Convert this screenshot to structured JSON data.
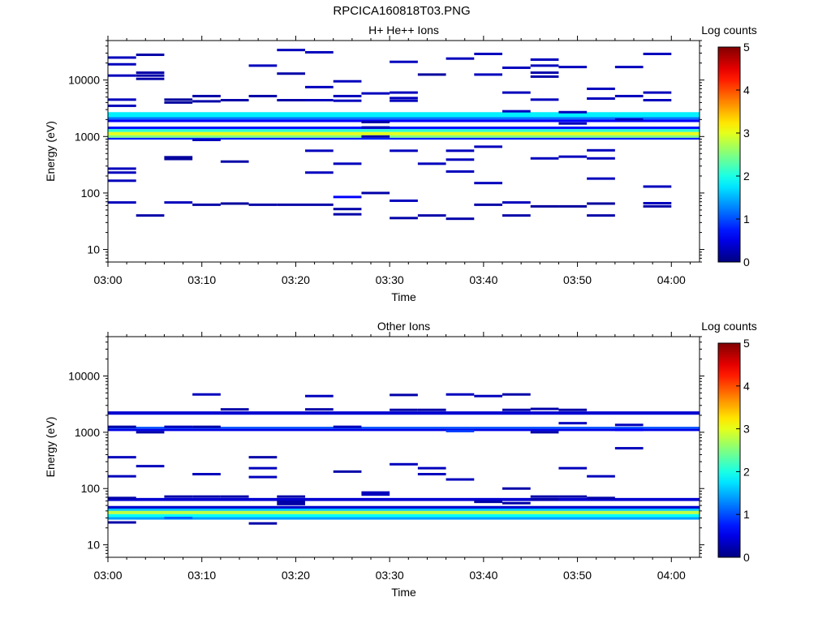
{
  "title": "RPCICA160818T03.PNG",
  "colors": {
    "frame": "#000000"
  },
  "chart_data": [
    {
      "type": "heatmap",
      "title": "H+ He++ Ions",
      "xlabel": "Time",
      "ylabel": "Energy (eV)",
      "yscale": "log",
      "ylim": [
        6,
        50000
      ],
      "xlim": [
        "03:00",
        "04:03"
      ],
      "x_ticks": [
        "03:00",
        "03:10",
        "03:20",
        "03:30",
        "03:40",
        "03:50",
        "04:00"
      ],
      "y_ticks": [
        "10",
        "100",
        "1000",
        "10000"
      ],
      "colorbar": {
        "label": "Log counts",
        "range": [
          0,
          5
        ],
        "ticks": [
          "0",
          "1",
          "2",
          "3",
          "4",
          "5"
        ]
      },
      "time_bins": [
        "03:00",
        "03:03",
        "03:06",
        "03:09",
        "03:12",
        "03:15",
        "03:18",
        "03:21",
        "03:24",
        "03:27",
        "03:30",
        "03:33",
        "03:36",
        "03:39",
        "03:42",
        "03:45",
        "03:48",
        "03:51",
        "03:54",
        "03:57",
        "04:00"
      ],
      "bands": [
        {
          "energy_lo": 2200,
          "energy_hi": 2700,
          "log_counts": 1.8
        },
        {
          "energy_lo": 2000,
          "energy_hi": 2200,
          "log_counts": 1.2
        },
        {
          "energy_lo": 1800,
          "energy_hi": 2000,
          "log_counts": 0.6
        },
        {
          "energy_lo": 1350,
          "energy_hi": 1500,
          "log_counts": 0.7
        },
        {
          "energy_lo": 1200,
          "energy_hi": 1350,
          "log_counts": 2.1
        },
        {
          "energy_lo": 1050,
          "energy_hi": 1200,
          "log_counts": 3.0
        },
        {
          "energy_lo": 950,
          "energy_hi": 1050,
          "log_counts": 2.5
        },
        {
          "energy_lo": 880,
          "energy_hi": 950,
          "log_counts": 0.8
        }
      ],
      "sparse": [
        {
          "t": 0,
          "e": 25000,
          "v": 0.3
        },
        {
          "t": 0,
          "e": 19000,
          "v": 0.3
        },
        {
          "t": 0,
          "e": 12000,
          "v": 0.3
        },
        {
          "t": 0,
          "e": 4500,
          "v": 0.3
        },
        {
          "t": 0,
          "e": 3500,
          "v": 0.3
        },
        {
          "t": 0,
          "e": 270,
          "v": 0.3
        },
        {
          "t": 0,
          "e": 230,
          "v": 0.3
        },
        {
          "t": 0,
          "e": 165,
          "v": 0.3
        },
        {
          "t": 0,
          "e": 68,
          "v": 0.3
        },
        {
          "t": 1,
          "e": 28000,
          "v": 0.2
        },
        {
          "t": 1,
          "e": 13500,
          "v": 0.2
        },
        {
          "t": 1,
          "e": 12000,
          "v": 0.2
        },
        {
          "t": 1,
          "e": 10500,
          "v": 0.2
        },
        {
          "t": 1,
          "e": 40,
          "v": 0.2
        },
        {
          "t": 2,
          "e": 4500,
          "v": 0.15
        },
        {
          "t": 2,
          "e": 4000,
          "v": 0.15
        },
        {
          "t": 2,
          "e": 430,
          "v": 0.15
        },
        {
          "t": 2,
          "e": 400,
          "v": 0.15
        },
        {
          "t": 2,
          "e": 68,
          "v": 0.3
        },
        {
          "t": 3,
          "e": 5200,
          "v": 0.2
        },
        {
          "t": 3,
          "e": 4200,
          "v": 0.2
        },
        {
          "t": 3,
          "e": 870,
          "v": 0.3
        },
        {
          "t": 3,
          "e": 62,
          "v": 0.2
        },
        {
          "t": 4,
          "e": 4400,
          "v": 0.2
        },
        {
          "t": 4,
          "e": 360,
          "v": 0.2
        },
        {
          "t": 4,
          "e": 65,
          "v": 0.15
        },
        {
          "t": 5,
          "e": 18000,
          "v": 0.3
        },
        {
          "t": 5,
          "e": 5200,
          "v": 0.2
        },
        {
          "t": 5,
          "e": 62,
          "v": 0.2
        },
        {
          "t": 6,
          "e": 34000,
          "v": 0.3
        },
        {
          "t": 6,
          "e": 13000,
          "v": 0.2
        },
        {
          "t": 6,
          "e": 4400,
          "v": 0.2
        },
        {
          "t": 6,
          "e": 62,
          "v": 0.2
        },
        {
          "t": 7,
          "e": 31000,
          "v": 0.3
        },
        {
          "t": 7,
          "e": 7500,
          "v": 0.3
        },
        {
          "t": 7,
          "e": 4400,
          "v": 0.3
        },
        {
          "t": 7,
          "e": 560,
          "v": 0.3
        },
        {
          "t": 7,
          "e": 230,
          "v": 0.3
        },
        {
          "t": 7,
          "e": 62,
          "v": 0.2
        },
        {
          "t": 8,
          "e": 9500,
          "v": 0.3
        },
        {
          "t": 8,
          "e": 5200,
          "v": 0.3
        },
        {
          "t": 8,
          "e": 4300,
          "v": 0.3
        },
        {
          "t": 8,
          "e": 330,
          "v": 0.3
        },
        {
          "t": 8,
          "e": 85,
          "v": 0.6
        },
        {
          "t": 8,
          "e": 52,
          "v": 0.2
        },
        {
          "t": 8,
          "e": 42,
          "v": 0.2
        },
        {
          "t": 9,
          "e": 5800,
          "v": 0.3
        },
        {
          "t": 9,
          "e": 1800,
          "v": 0.2
        },
        {
          "t": 9,
          "e": 1450,
          "v": 0.3
        },
        {
          "t": 9,
          "e": 1000,
          "v": 0.2
        },
        {
          "t": 9,
          "e": 100,
          "v": 0.2
        },
        {
          "t": 10,
          "e": 21000,
          "v": 0.3
        },
        {
          "t": 10,
          "e": 6000,
          "v": 0.3
        },
        {
          "t": 10,
          "e": 4800,
          "v": 0.3
        },
        {
          "t": 10,
          "e": 4300,
          "v": 0.3
        },
        {
          "t": 10,
          "e": 560,
          "v": 0.3
        },
        {
          "t": 10,
          "e": 73,
          "v": 0.3
        },
        {
          "t": 10,
          "e": 36,
          "v": 0.2
        },
        {
          "t": 11,
          "e": 12500,
          "v": 0.15
        },
        {
          "t": 11,
          "e": 330,
          "v": 0.3
        },
        {
          "t": 11,
          "e": 40,
          "v": 0.2
        },
        {
          "t": 12,
          "e": 24000,
          "v": 0.3
        },
        {
          "t": 12,
          "e": 560,
          "v": 0.3
        },
        {
          "t": 12,
          "e": 390,
          "v": 0.3
        },
        {
          "t": 12,
          "e": 240,
          "v": 0.3
        },
        {
          "t": 12,
          "e": 35,
          "v": 0.2
        },
        {
          "t": 13,
          "e": 29000,
          "v": 0.3
        },
        {
          "t": 13,
          "e": 12500,
          "v": 0.3
        },
        {
          "t": 13,
          "e": 660,
          "v": 0.3
        },
        {
          "t": 13,
          "e": 150,
          "v": 0.3
        },
        {
          "t": 13,
          "e": 62,
          "v": 0.2
        },
        {
          "t": 14,
          "e": 16500,
          "v": 0.3
        },
        {
          "t": 14,
          "e": 6000,
          "v": 0.3
        },
        {
          "t": 14,
          "e": 2800,
          "v": 0.3
        },
        {
          "t": 14,
          "e": 68,
          "v": 0.3
        },
        {
          "t": 14,
          "e": 40,
          "v": 0.2
        },
        {
          "t": 15,
          "e": 23000,
          "v": 0.3
        },
        {
          "t": 15,
          "e": 18000,
          "v": 0.3
        },
        {
          "t": 15,
          "e": 13500,
          "v": 0.2
        },
        {
          "t": 15,
          "e": 11500,
          "v": 0.2
        },
        {
          "t": 15,
          "e": 4500,
          "v": 0.3
        },
        {
          "t": 15,
          "e": 410,
          "v": 0.3
        },
        {
          "t": 15,
          "e": 58,
          "v": 0.15
        },
        {
          "t": 16,
          "e": 17000,
          "v": 0.3
        },
        {
          "t": 16,
          "e": 2700,
          "v": 0.3
        },
        {
          "t": 16,
          "e": 1700,
          "v": 0.3
        },
        {
          "t": 16,
          "e": 440,
          "v": 0.3
        },
        {
          "t": 16,
          "e": 58,
          "v": 0.15
        },
        {
          "t": 17,
          "e": 7000,
          "v": 0.3
        },
        {
          "t": 17,
          "e": 4700,
          "v": 0.3
        },
        {
          "t": 17,
          "e": 570,
          "v": 0.3
        },
        {
          "t": 17,
          "e": 410,
          "v": 0.3
        },
        {
          "t": 17,
          "e": 180,
          "v": 0.3
        },
        {
          "t": 17,
          "e": 65,
          "v": 0.15
        },
        {
          "t": 17,
          "e": 40,
          "v": 0.2
        },
        {
          "t": 18,
          "e": 17000,
          "v": 0.3
        },
        {
          "t": 18,
          "e": 5200,
          "v": 0.3
        },
        {
          "t": 18,
          "e": 2000,
          "v": 0.3
        },
        {
          "t": 19,
          "e": 29000,
          "v": 0.3
        },
        {
          "t": 19,
          "e": 6000,
          "v": 0.3
        },
        {
          "t": 19,
          "e": 4400,
          "v": 0.3
        },
        {
          "t": 19,
          "e": 130,
          "v": 0.3
        },
        {
          "t": 19,
          "e": 66,
          "v": 0.3
        },
        {
          "t": 19,
          "e": 58,
          "v": 0.2
        }
      ]
    },
    {
      "type": "heatmap",
      "title": "Other Ions",
      "xlabel": "Time",
      "ylabel": "Energy (eV)",
      "yscale": "log",
      "ylim": [
        6,
        50000
      ],
      "xlim": [
        "03:00",
        "04:03"
      ],
      "x_ticks": [
        "03:00",
        "03:10",
        "03:20",
        "03:30",
        "03:40",
        "03:50",
        "04:00"
      ],
      "y_ticks": [
        "10",
        "100",
        "1000",
        "10000"
      ],
      "colorbar": {
        "label": "Log counts",
        "range": [
          0,
          5
        ],
        "ticks": [
          "0",
          "1",
          "2",
          "3",
          "4",
          "5"
        ]
      },
      "time_bins": [
        "03:00",
        "03:03",
        "03:06",
        "03:09",
        "03:12",
        "03:15",
        "03:18",
        "03:21",
        "03:24",
        "03:27",
        "03:30",
        "03:33",
        "03:36",
        "03:39",
        "03:42",
        "03:45",
        "03:48",
        "03:51",
        "03:54",
        "03:57",
        "04:00"
      ],
      "bands": [
        {
          "energy_lo": 2050,
          "energy_hi": 2350,
          "log_counts": 0.4
        },
        {
          "energy_lo": 1150,
          "energy_hi": 1250,
          "log_counts": 1.0
        },
        {
          "energy_lo": 1050,
          "energy_hi": 1150,
          "log_counts": 0.5
        },
        {
          "energy_lo": 60,
          "energy_hi": 68,
          "log_counts": 0.4
        },
        {
          "energy_lo": 44,
          "energy_hi": 49,
          "log_counts": 0.4
        },
        {
          "energy_lo": 40,
          "energy_hi": 44,
          "log_counts": 1.6
        },
        {
          "energy_lo": 35,
          "energy_hi": 40,
          "log_counts": 2.8
        },
        {
          "energy_lo": 31,
          "energy_hi": 35,
          "log_counts": 1.9
        },
        {
          "energy_lo": 28,
          "energy_hi": 31,
          "log_counts": 1.4
        }
      ],
      "sparse": [
        {
          "t": 0,
          "e": 1250,
          "v": 0.2
        },
        {
          "t": 0,
          "e": 360,
          "v": 0.3
        },
        {
          "t": 0,
          "e": 165,
          "v": 0.3
        },
        {
          "t": 0,
          "e": 68,
          "v": 0.2
        },
        {
          "t": 0,
          "e": 25,
          "v": 0.2
        },
        {
          "t": 1,
          "e": 1000,
          "v": 0.2
        },
        {
          "t": 1,
          "e": 250,
          "v": 0.3
        },
        {
          "t": 2,
          "e": 1250,
          "v": 0.3
        },
        {
          "t": 2,
          "e": 72,
          "v": 0.2
        },
        {
          "t": 2,
          "e": 30,
          "v": 1.1
        },
        {
          "t": 3,
          "e": 4700,
          "v": 0.3
        },
        {
          "t": 3,
          "e": 1250,
          "v": 0.2
        },
        {
          "t": 3,
          "e": 180,
          "v": 0.3
        },
        {
          "t": 3,
          "e": 72,
          "v": 0.2
        },
        {
          "t": 4,
          "e": 2550,
          "v": 0.2
        },
        {
          "t": 4,
          "e": 72,
          "v": 0.2
        },
        {
          "t": 5,
          "e": 360,
          "v": 0.2
        },
        {
          "t": 5,
          "e": 230,
          "v": 0.3
        },
        {
          "t": 5,
          "e": 160,
          "v": 0.3
        },
        {
          "t": 5,
          "e": 24,
          "v": 0.2
        },
        {
          "t": 6,
          "e": 72,
          "v": 0.2
        },
        {
          "t": 6,
          "e": 58,
          "v": 0.2
        },
        {
          "t": 6,
          "e": 53,
          "v": 0.2
        },
        {
          "t": 7,
          "e": 4400,
          "v": 0.3
        },
        {
          "t": 7,
          "e": 2550,
          "v": 0.2
        },
        {
          "t": 8,
          "e": 1250,
          "v": 0.3
        },
        {
          "t": 8,
          "e": 200,
          "v": 0.2
        },
        {
          "t": 9,
          "e": 85,
          "v": 0.3
        },
        {
          "t": 9,
          "e": 78,
          "v": 0.3
        },
        {
          "t": 10,
          "e": 4600,
          "v": 0.2
        },
        {
          "t": 10,
          "e": 2500,
          "v": 0.2
        },
        {
          "t": 10,
          "e": 270,
          "v": 0.3
        },
        {
          "t": 11,
          "e": 2500,
          "v": 0.2
        },
        {
          "t": 11,
          "e": 230,
          "v": 0.3
        },
        {
          "t": 11,
          "e": 180,
          "v": 0.3
        },
        {
          "t": 12,
          "e": 1050,
          "v": 0.9
        },
        {
          "t": 12,
          "e": 4700,
          "v": 0.3
        },
        {
          "t": 12,
          "e": 145,
          "v": 0.3
        },
        {
          "t": 13,
          "e": 4400,
          "v": 0.3
        },
        {
          "t": 13,
          "e": 58,
          "v": 0.2
        },
        {
          "t": 14,
          "e": 4700,
          "v": 0.2
        },
        {
          "t": 14,
          "e": 2500,
          "v": 0.2
        },
        {
          "t": 14,
          "e": 100,
          "v": 0.2
        },
        {
          "t": 14,
          "e": 55,
          "v": 0.2
        },
        {
          "t": 15,
          "e": 2600,
          "v": 0.2
        },
        {
          "t": 15,
          "e": 1000,
          "v": 0.2
        },
        {
          "t": 15,
          "e": 72,
          "v": 0.2
        },
        {
          "t": 15,
          "e": 64,
          "v": 0.2
        },
        {
          "t": 16,
          "e": 2500,
          "v": 0.2
        },
        {
          "t": 16,
          "e": 1450,
          "v": 0.3
        },
        {
          "t": 16,
          "e": 230,
          "v": 0.3
        },
        {
          "t": 16,
          "e": 72,
          "v": 0.2
        },
        {
          "t": 17,
          "e": 165,
          "v": 0.3
        },
        {
          "t": 17,
          "e": 68,
          "v": 0.2
        },
        {
          "t": 18,
          "e": 1350,
          "v": 0.3
        },
        {
          "t": 18,
          "e": 1100,
          "v": 0.6
        },
        {
          "t": 18,
          "e": 520,
          "v": 0.3
        }
      ]
    }
  ]
}
